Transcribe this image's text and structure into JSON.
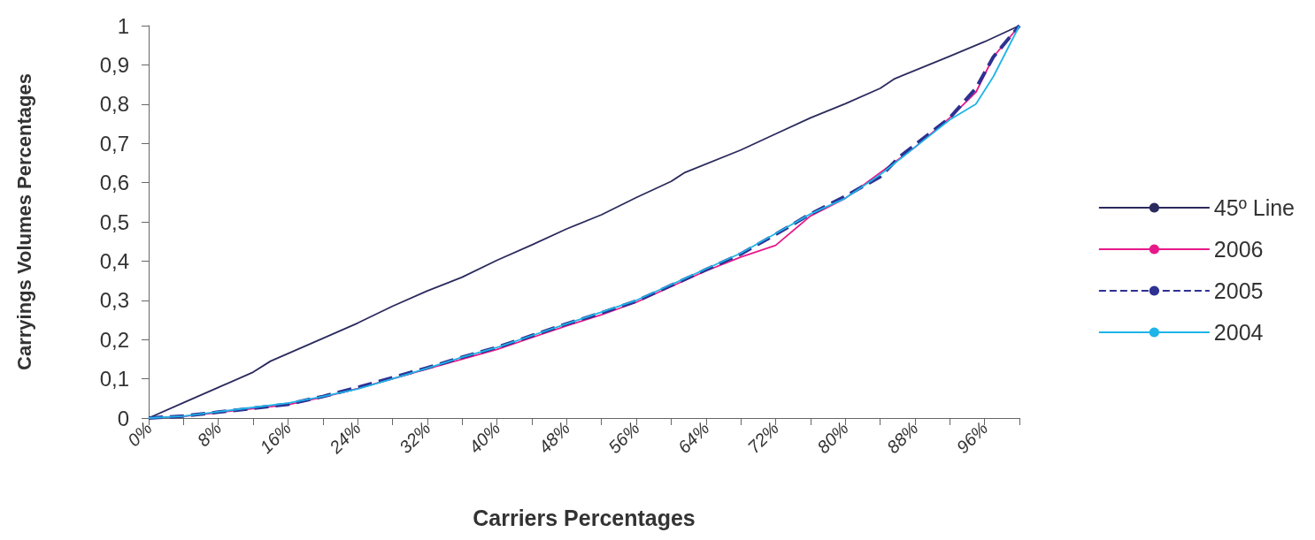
{
  "chart_data": {
    "type": "line",
    "xlabel": "Carriers Percentages",
    "ylabel": "Carryings Volumes Percentages",
    "xlim": [
      0,
      100
    ],
    "ylim": [
      0,
      1
    ],
    "xticks": [
      {
        "value": 0,
        "label": "0%"
      },
      {
        "value": 4,
        "label": null
      },
      {
        "value": 8,
        "label": "8%"
      },
      {
        "value": 12,
        "label": null
      },
      {
        "value": 16,
        "label": "16%"
      },
      {
        "value": 20,
        "label": null
      },
      {
        "value": 24,
        "label": "24%"
      },
      {
        "value": 28,
        "label": null
      },
      {
        "value": 32,
        "label": "32%"
      },
      {
        "value": 36,
        "label": null
      },
      {
        "value": 40,
        "label": "40%"
      },
      {
        "value": 44,
        "label": null
      },
      {
        "value": 48,
        "label": "48%"
      },
      {
        "value": 52,
        "label": null
      },
      {
        "value": 56,
        "label": "56%"
      },
      {
        "value": 60,
        "label": null
      },
      {
        "value": 64,
        "label": "64%"
      },
      {
        "value": 68,
        "label": null
      },
      {
        "value": 72,
        "label": "72%"
      },
      {
        "value": 76,
        "label": null
      },
      {
        "value": 80,
        "label": "80%"
      },
      {
        "value": 84,
        "label": null
      },
      {
        "value": 88,
        "label": "88%"
      },
      {
        "value": 92,
        "label": null
      },
      {
        "value": 96,
        "label": "96%"
      },
      {
        "value": 100,
        "label": null
      }
    ],
    "yticks": [
      0,
      {
        "value": 0.1,
        "label": "0,1"
      },
      {
        "value": 0.2,
        "label": "0,2"
      },
      {
        "value": 0.3,
        "label": "0,3"
      },
      {
        "value": 0.4,
        "label": "0,4"
      },
      {
        "value": 0.5,
        "label": "0,5"
      },
      {
        "value": 0.6,
        "label": "0,6"
      },
      {
        "value": 0.7,
        "label": "0,7"
      },
      {
        "value": 0.8,
        "label": "0,8"
      },
      {
        "value": 0.9,
        "label": "0,9"
      },
      1
    ],
    "grid": false,
    "legend": "right",
    "marker": "none",
    "series": [
      {
        "name": "45º Line",
        "color": "#2b2a5e",
        "line_style": "solid",
        "x": [
          0,
          4,
          8,
          12,
          14,
          20,
          24,
          28,
          32,
          36,
          40,
          44,
          48,
          52,
          56,
          60,
          61.6,
          68,
          72,
          76,
          80,
          84,
          85.6,
          92,
          96,
          100
        ],
        "values": [
          0,
          0.039,
          0.078,
          0.117,
          0.145,
          0.203,
          0.242,
          0.285,
          0.324,
          0.359,
          0.402,
          0.441,
          0.482,
          0.518,
          0.562,
          0.603,
          0.626,
          0.683,
          0.724,
          0.765,
          0.801,
          0.84,
          0.864,
          0.922,
          0.959,
          1
        ]
      },
      {
        "name": "2006",
        "color": "#e6198a",
        "line_style": "solid",
        "x": [
          0,
          4,
          8,
          12,
          16,
          20,
          24,
          28,
          32,
          36,
          40,
          44,
          48,
          52,
          56,
          60,
          64,
          68,
          72,
          76,
          80,
          84,
          88,
          92,
          95,
          97,
          100
        ],
        "values": [
          0,
          0.004,
          0.014,
          0.024,
          0.034,
          0.053,
          0.075,
          0.1,
          0.125,
          0.15,
          0.175,
          0.205,
          0.235,
          0.263,
          0.295,
          0.335,
          0.375,
          0.41,
          0.44,
          0.515,
          0.56,
          0.625,
          0.69,
          0.765,
          0.83,
          0.92,
          1
        ]
      },
      {
        "name": "2005",
        "color": "#2e3192",
        "line_style": "dashed",
        "x": [
          0,
          4,
          8,
          12,
          16,
          20,
          24,
          28,
          32,
          36,
          40,
          44,
          48,
          52,
          56,
          60,
          64,
          68,
          72,
          76,
          80,
          84,
          86.2,
          92,
          95,
          97,
          100
        ],
        "values": [
          0,
          0.005,
          0.015,
          0.025,
          0.035,
          0.055,
          0.078,
          0.103,
          0.128,
          0.155,
          0.18,
          0.21,
          0.24,
          0.268,
          0.298,
          0.338,
          0.378,
          0.418,
          0.468,
          0.52,
          0.565,
          0.615,
          0.665,
          0.765,
          0.84,
          0.92,
          1
        ]
      },
      {
        "name": "2004",
        "color": "#1eb4e8",
        "line_style": "solid",
        "x": [
          0,
          4,
          8,
          12,
          16,
          20,
          24,
          28,
          32,
          36,
          40,
          44,
          48,
          52,
          56,
          60,
          64,
          68,
          72,
          76,
          80,
          84,
          88,
          92,
          95,
          97,
          100
        ],
        "values": [
          0,
          0.005,
          0.016,
          0.027,
          0.038,
          0.055,
          0.074,
          0.1,
          0.127,
          0.155,
          0.18,
          0.21,
          0.24,
          0.27,
          0.3,
          0.34,
          0.38,
          0.42,
          0.47,
          0.52,
          0.56,
          0.62,
          0.69,
          0.76,
          0.8,
          0.87,
          1
        ]
      }
    ]
  }
}
